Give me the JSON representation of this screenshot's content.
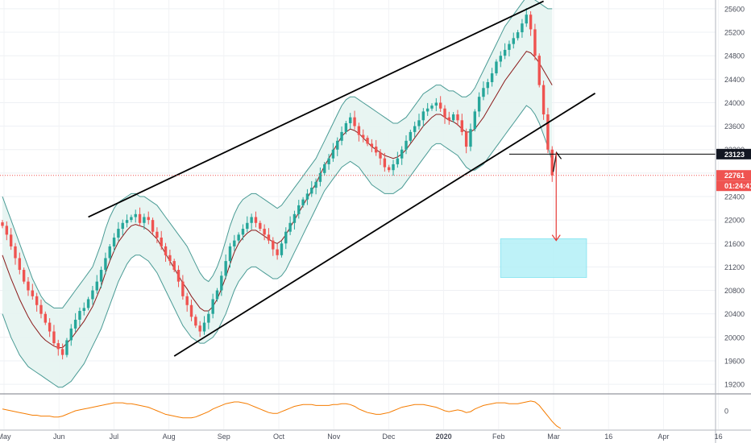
{
  "chart_data": {
    "type": "candlestick",
    "y_axis": {
      "ticks": [
        25600,
        25200,
        24800,
        24400,
        24000,
        23600,
        23200,
        22800,
        22400,
        22000,
        21600,
        21200,
        20800,
        20400,
        20000,
        19600,
        19200
      ],
      "range": [
        19050,
        25750
      ]
    },
    "x_axis": {
      "labels": [
        "May",
        "Jun",
        "Jul",
        "Aug",
        "Sep",
        "Oct",
        "Nov",
        "Dec",
        "2020",
        "Feb",
        "Mar",
        "16",
        "Apr",
        "16"
      ],
      "bold_labels": [
        "2020"
      ]
    },
    "series": {
      "closes": [
        21900,
        21750,
        21550,
        21350,
        21150,
        20950,
        20800,
        20700,
        20550,
        20400,
        20250,
        20100,
        19900,
        19800,
        19700,
        19950,
        20150,
        20300,
        20450,
        20500,
        20650,
        20800,
        20950,
        21150,
        21350,
        21550,
        21700,
        21850,
        21950,
        22000,
        22050,
        22100,
        21950,
        22050,
        22000,
        21800,
        21700,
        21550,
        21400,
        21300,
        21150,
        20950,
        20700,
        20550,
        20350,
        20200,
        20100,
        20250,
        20400,
        20650,
        20800,
        21050,
        21300,
        21550,
        21650,
        21750,
        21850,
        21950,
        22050,
        21950,
        21850,
        21750,
        21650,
        21500,
        21400,
        21600,
        21800,
        21950,
        22100,
        22250,
        22350,
        22450,
        22550,
        22650,
        22800,
        22950,
        23050,
        23200,
        23350,
        23500,
        23650,
        23750,
        23600,
        23450,
        23400,
        23300,
        23250,
        23150,
        23050,
        22900,
        22850,
        22950,
        23050,
        23200,
        23350,
        23500,
        23600,
        23700,
        23850,
        23900,
        23950,
        24000,
        23900,
        23750,
        23700,
        23800,
        23700,
        23500,
        23250,
        23550,
        23850,
        24100,
        24250,
        24350,
        24500,
        24700,
        24800,
        24900,
        25000,
        25100,
        25200,
        25350,
        25500,
        25250,
        24800,
        24300,
        23800,
        23200,
        22761
      ],
      "bb_upper": [
        22400,
        22200,
        22000,
        21800,
        21600,
        21400,
        21200,
        21000,
        20850,
        20700,
        20600,
        20550,
        20500,
        20500,
        20500,
        20600,
        20700,
        20800,
        20900,
        21000,
        21100,
        21200,
        21400,
        21600,
        21850,
        22050,
        22200,
        22300,
        22350,
        22400,
        22450,
        22450,
        22400,
        22400,
        22350,
        22300,
        22250,
        22150,
        22050,
        21950,
        21850,
        21750,
        21650,
        21550,
        21400,
        21250,
        21100,
        21000,
        20950,
        21050,
        21200,
        21400,
        21650,
        21900,
        22100,
        22250,
        22350,
        22400,
        22450,
        22450,
        22400,
        22350,
        22300,
        22250,
        22200,
        22250,
        22350,
        22450,
        22550,
        22650,
        22750,
        22850,
        22950,
        23050,
        23200,
        23350,
        23500,
        23650,
        23800,
        23950,
        24050,
        24100,
        24100,
        24050,
        24000,
        23950,
        23900,
        23850,
        23800,
        23750,
        23700,
        23650,
        23650,
        23700,
        23750,
        23850,
        23950,
        24050,
        24150,
        24200,
        24250,
        24300,
        24300,
        24250,
        24200,
        24200,
        24150,
        24100,
        24100,
        24150,
        24250,
        24400,
        24550,
        24700,
        24850,
        25000,
        25150,
        25300,
        25400,
        25500,
        25600,
        25700,
        25800,
        25800,
        25750,
        25700,
        25650,
        25600,
        25600
      ],
      "bb_lower": [
        20400,
        20200,
        20000,
        19850,
        19700,
        19600,
        19500,
        19450,
        19400,
        19350,
        19300,
        19250,
        19200,
        19150,
        19150,
        19200,
        19250,
        19350,
        19450,
        19550,
        19700,
        19850,
        20000,
        20150,
        20350,
        20550,
        20750,
        20950,
        21100,
        21250,
        21350,
        21400,
        21400,
        21350,
        21300,
        21200,
        21100,
        20950,
        20800,
        20650,
        20500,
        20350,
        20200,
        20100,
        20000,
        19950,
        19900,
        19900,
        19950,
        20000,
        20100,
        20250,
        20400,
        20600,
        20800,
        20950,
        21050,
        21150,
        21200,
        21200,
        21150,
        21100,
        21050,
        21000,
        21000,
        21050,
        21150,
        21300,
        21450,
        21600,
        21750,
        21900,
        22050,
        22200,
        22350,
        22500,
        22600,
        22700,
        22800,
        22900,
        22950,
        23000,
        22950,
        22900,
        22800,
        22700,
        22600,
        22550,
        22500,
        22450,
        22450,
        22450,
        22500,
        22550,
        22650,
        22750,
        22850,
        22950,
        23050,
        23150,
        23250,
        23300,
        23300,
        23250,
        23200,
        23150,
        23100,
        23000,
        22900,
        22850,
        22850,
        22900,
        22950,
        23050,
        23150,
        23250,
        23350,
        23450,
        23550,
        23650,
        23750,
        23850,
        23950,
        23900,
        23800,
        23650,
        23450,
        23250,
        23000
      ],
      "oscillator": [
        0.2,
        0.1,
        0.0,
        -0.1,
        -0.2,
        -0.3,
        -0.4,
        -0.5,
        -0.5,
        -0.6,
        -0.6,
        -0.6,
        -0.7,
        -0.7,
        -0.6,
        -0.4,
        -0.2,
        0.0,
        0.1,
        0.2,
        0.3,
        0.4,
        0.5,
        0.6,
        0.7,
        0.8,
        0.9,
        0.9,
        0.9,
        0.8,
        0.8,
        0.7,
        0.6,
        0.5,
        0.4,
        0.2,
        0.0,
        -0.2,
        -0.4,
        -0.5,
        -0.6,
        -0.7,
        -0.8,
        -0.8,
        -0.8,
        -0.7,
        -0.5,
        -0.3,
        -0.1,
        0.2,
        0.4,
        0.6,
        0.8,
        0.9,
        1.0,
        1.0,
        0.9,
        0.8,
        0.6,
        0.4,
        0.2,
        0.0,
        -0.2,
        -0.3,
        -0.3,
        -0.1,
        0.1,
        0.3,
        0.5,
        0.6,
        0.7,
        0.7,
        0.7,
        0.6,
        0.6,
        0.6,
        0.6,
        0.7,
        0.7,
        0.8,
        0.8,
        0.7,
        0.5,
        0.2,
        0.0,
        -0.2,
        -0.3,
        -0.4,
        -0.4,
        -0.3,
        -0.2,
        0.0,
        0.2,
        0.4,
        0.5,
        0.6,
        0.7,
        0.7,
        0.7,
        0.6,
        0.5,
        0.4,
        0.2,
        0.0,
        -0.1,
        0.0,
        0.1,
        0.0,
        -0.2,
        -0.1,
        0.2,
        0.4,
        0.6,
        0.7,
        0.8,
        0.9,
        0.9,
        0.9,
        0.8,
        0.8,
        0.8,
        0.9,
        1.0,
        1.1,
        1.0,
        0.6,
        0.0,
        -0.6,
        -1.2,
        -1.7,
        -2.0
      ]
    },
    "channel": {
      "upper_line": [
        [
          20,
          22050
        ],
        [
          126,
          25730
        ]
      ],
      "lower_line": [
        [
          40,
          19680
        ],
        [
          138,
          24160
        ]
      ]
    },
    "support_level": 23123,
    "last_price": 22761,
    "countdown": "01:24:41",
    "target_zone": {
      "from_bar": 116,
      "to_bar": 136,
      "top": 21680,
      "bottom": 21020
    },
    "projection": {
      "bar": 128,
      "from": 23150,
      "to": 21650
    },
    "colors": {
      "up": "#26a69a",
      "down": "#ef5350",
      "bands": "#4a9b95",
      "band_fill": "#e6f4f1",
      "basis": "#8b1a1a",
      "oscillator": "#f57c00",
      "target": "#b3f0f7",
      "target_border": "#7fe3f0",
      "projection": "#e53935",
      "label_dark": "#131722",
      "label_price": "#ef5350"
    }
  }
}
